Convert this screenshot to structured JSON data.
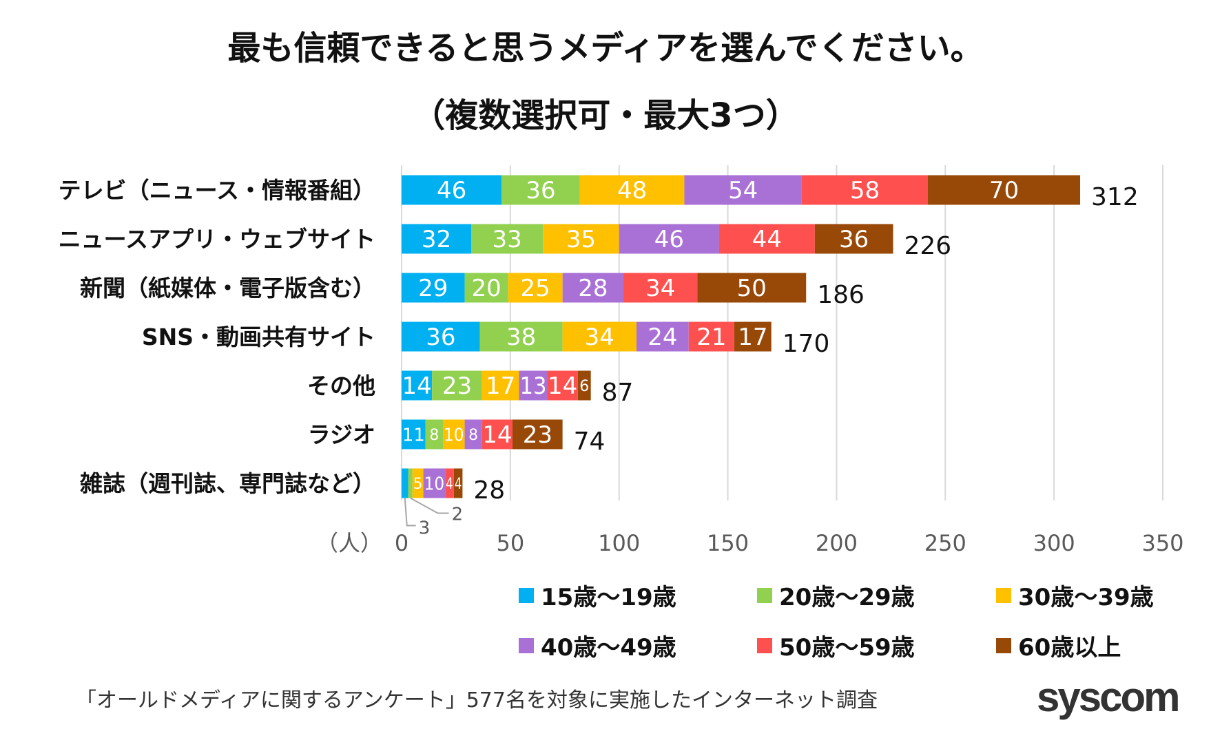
{
  "chart_data": {
    "type": "bar",
    "orientation": "horizontal",
    "stacked": true,
    "title": "最も信頼できると思うメディアを選んでください。",
    "subtitle": "（複数選択可・最大3つ）",
    "xlabel": "（人）",
    "xlim": [
      0,
      350
    ],
    "xticks": [
      "0",
      "50",
      "100",
      "150",
      "200",
      "250",
      "300",
      "350"
    ],
    "grid": true,
    "legend_position": "bottom-right",
    "categories": [
      "テレビ（ニュース・情報番組）",
      "ニュースアプリ・ウェブサイト",
      "新聞（紙媒体・電子版含む）",
      "SNS・動画共有サイト",
      "その他",
      "ラジオ",
      "雑誌（週刊誌、専門誌など）"
    ],
    "totals": [
      312,
      226,
      186,
      170,
      87,
      74,
      28
    ],
    "series": [
      {
        "name": "15歳～19歳",
        "color": "#00B0F0",
        "values": [
          46,
          32,
          29,
          36,
          14,
          11,
          3
        ]
      },
      {
        "name": "20歳～29歳",
        "color": "#92D050",
        "values": [
          36,
          33,
          20,
          38,
          23,
          8,
          2
        ]
      },
      {
        "name": "30歳～39歳",
        "color": "#FFC000",
        "values": [
          48,
          35,
          25,
          34,
          17,
          10,
          5
        ]
      },
      {
        "name": "40歳～49歳",
        "color": "#A971D6",
        "values": [
          54,
          46,
          28,
          24,
          13,
          8,
          10
        ]
      },
      {
        "name": "50歳～59歳",
        "color": "#FF5050",
        "values": [
          58,
          44,
          34,
          21,
          14,
          14,
          4
        ]
      },
      {
        "name": "60歳以上",
        "color": "#984807",
        "values": [
          70,
          36,
          50,
          17,
          6,
          23,
          4
        ]
      }
    ]
  },
  "footer": "「オールドメディアに関するアンケート」577名を対象に実施したインターネット調査",
  "logo": "syscom"
}
